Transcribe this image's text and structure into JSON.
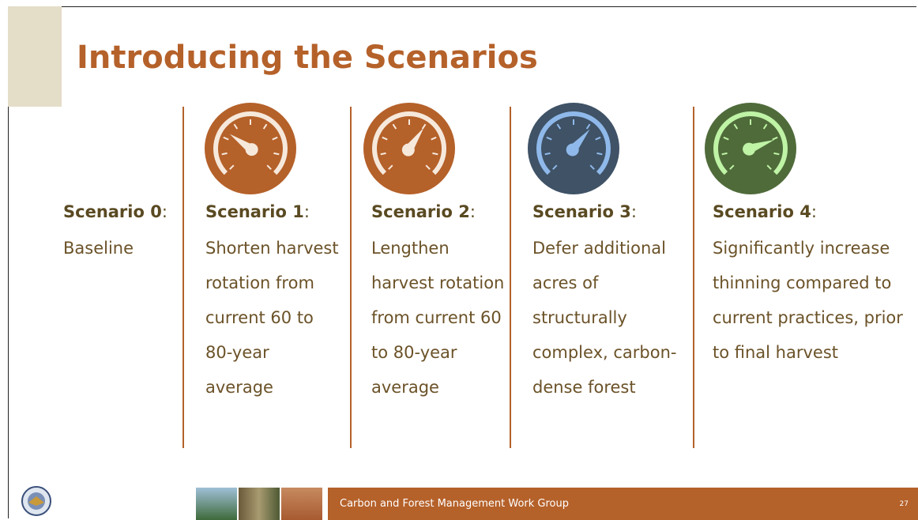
{
  "title": "Introducing the Scenarios",
  "scenarios": [
    {
      "label": "Scenario 0",
      "punct": ":",
      "description": "Baseline"
    },
    {
      "label": "Scenario 1",
      "punct": ":",
      "description": "Shorten harvest rotation from current 60 to 80-year average"
    },
    {
      "label": "Scenario 2",
      "punct": ":",
      "description": "Lengthen harvest rotation from current 60 to 80-year average"
    },
    {
      "label": "Scenario 3",
      "punct": ":",
      "description": "Defer additional acres of structurally complex, carbon-dense forest"
    },
    {
      "label": "Scenario 4",
      "punct": ":",
      "description": "Significantly increase thinning compared to current practices, prior to final harvest"
    }
  ],
  "footer": {
    "text": "Carbon and Forest Management Work Group",
    "page": "27"
  }
}
